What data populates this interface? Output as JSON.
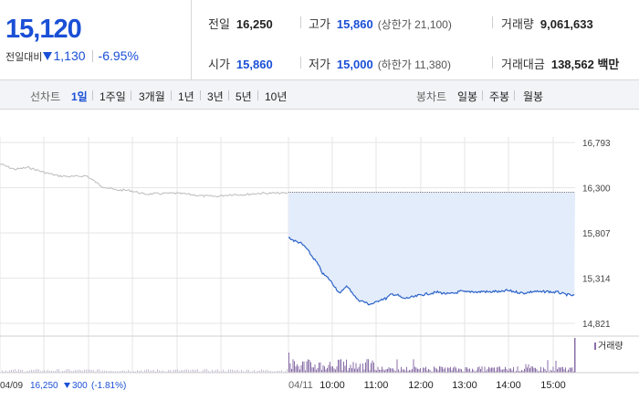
{
  "summary": {
    "price": "15,120",
    "change_label": "전일대비",
    "change_value": "1,130",
    "change_pct": "-6.95%",
    "prev_close_label": "전일",
    "prev_close": "16,250",
    "open_label": "시가",
    "open": "15,860",
    "high_label": "고가",
    "high": "15,860",
    "upper_limit": "(상한가 21,100)",
    "low_label": "저가",
    "low": "15,000",
    "lower_limit": "(하한가 11,380)",
    "volume_label": "거래량",
    "volume": "9,061,633",
    "amount_label": "거래대금",
    "amount": "138,562 백만"
  },
  "tabs": {
    "line_label": "선차트",
    "line_items": [
      "1일",
      "1주일",
      "3개월",
      "1년",
      "3년",
      "5년",
      "10년"
    ],
    "line_active": 0,
    "candle_label": "봉차트",
    "candle_items": [
      "일봉",
      "주봉",
      "월봉"
    ]
  },
  "colors": {
    "accent": "#1a4fd6",
    "today_line": "#2b63c8",
    "today_fill": "#e3ecfb",
    "prev_line": "#bcbcbc",
    "volume_bar": "#8a6fa8",
    "grid": "#e6e6e6"
  },
  "chart_data": {
    "type": "line",
    "y_ticks": [
      "16,793",
      "16,300",
      "15,807",
      "15,314",
      "14,821"
    ],
    "y_values": [
      16793,
      16300,
      15807,
      15314,
      14821
    ],
    "ylim": [
      14821,
      16793
    ],
    "reference_line": 16250,
    "x_ticks": [
      "04/11",
      "10:00",
      "11:00",
      "12:00",
      "13:00",
      "14:00",
      "15:00"
    ],
    "prev_day": {
      "date": "04/09",
      "close": "16,250",
      "change": "300",
      "change_pct": "(-1.81%)",
      "anchors": [
        [
          0,
          16560
        ],
        [
          5,
          16500
        ],
        [
          10,
          16520
        ],
        [
          15,
          16470
        ],
        [
          20,
          16430
        ],
        [
          25,
          16420
        ],
        [
          30,
          16430
        ],
        [
          35,
          16320
        ],
        [
          40,
          16275
        ],
        [
          45,
          16270
        ],
        [
          50,
          16230
        ],
        [
          55,
          16235
        ],
        [
          60,
          16240
        ],
        [
          65,
          16230
        ],
        [
          70,
          16210
        ],
        [
          75,
          16205
        ],
        [
          80,
          16225
        ],
        [
          85,
          16225
        ],
        [
          90,
          16240
        ],
        [
          95,
          16240
        ],
        [
          100,
          16240
        ]
      ]
    },
    "today": {
      "anchors": [
        [
          0,
          15760
        ],
        [
          2,
          15720
        ],
        [
          4,
          15700
        ],
        [
          6,
          15650
        ],
        [
          8,
          15560
        ],
        [
          10,
          15480
        ],
        [
          12,
          15360
        ],
        [
          14,
          15310
        ],
        [
          16,
          15230
        ],
        [
          18,
          15140
        ],
        [
          20,
          15230
        ],
        [
          22,
          15170
        ],
        [
          24,
          15080
        ],
        [
          26,
          15060
        ],
        [
          28,
          15030
        ],
        [
          30,
          15040
        ],
        [
          32,
          15080
        ],
        [
          34,
          15090
        ],
        [
          36,
          15140
        ],
        [
          38,
          15130
        ],
        [
          40,
          15090
        ],
        [
          42,
          15100
        ],
        [
          44,
          15110
        ],
        [
          46,
          15130
        ],
        [
          48,
          15140
        ],
        [
          50,
          15150
        ],
        [
          52,
          15160
        ],
        [
          54,
          15150
        ],
        [
          56,
          15140
        ],
        [
          58,
          15150
        ],
        [
          60,
          15170
        ],
        [
          62,
          15160
        ],
        [
          64,
          15170
        ],
        [
          66,
          15160
        ],
        [
          68,
          15170
        ],
        [
          70,
          15160
        ],
        [
          72,
          15170
        ],
        [
          74,
          15160
        ],
        [
          76,
          15180
        ],
        [
          78,
          15170
        ],
        [
          80,
          15160
        ],
        [
          82,
          15150
        ],
        [
          84,
          15160
        ],
        [
          86,
          15170
        ],
        [
          88,
          15160
        ],
        [
          90,
          15170
        ],
        [
          92,
          15160
        ],
        [
          94,
          15160
        ],
        [
          96,
          15140
        ],
        [
          98,
          15130
        ],
        [
          100,
          15120
        ]
      ]
    },
    "volume_legend": "거래량"
  }
}
